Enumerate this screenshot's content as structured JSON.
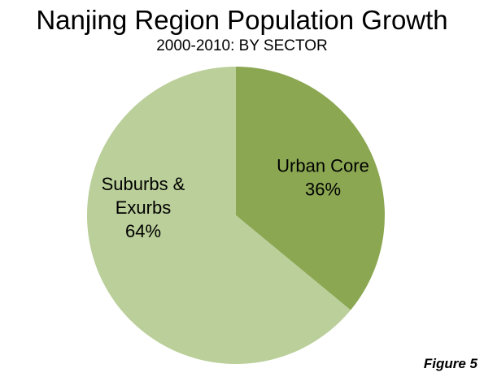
{
  "chart_data": {
    "type": "pie",
    "title": "Nanjing Region Population Growth",
    "subtitle": "2000-2010: BY SECTOR",
    "slices": [
      {
        "label_lines": [
          "Urban Core",
          "36%"
        ],
        "value": 36,
        "color": "#8ba752"
      },
      {
        "label_lines": [
          "Suburbs &",
          "Exurbs",
          "64%"
        ],
        "value": 64,
        "color": "#bacf99"
      }
    ],
    "start": "12 o'clock",
    "direction": "clockwise",
    "legend": "none"
  },
  "figure_label": "Figure 5"
}
